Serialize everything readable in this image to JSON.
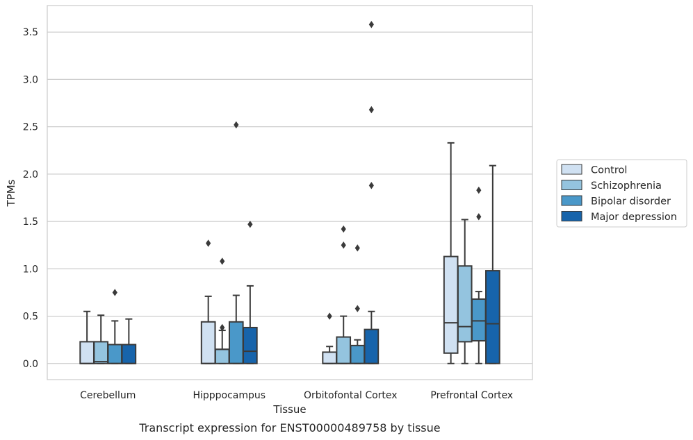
{
  "caption": "Transcript expression for ENST00000489758 by tissue",
  "chart_data": {
    "type": "box",
    "xlabel": "Tissue",
    "ylabel": "TPMs",
    "ylim": [
      -0.17,
      3.78
    ],
    "yticks": [
      "0.0",
      "0.5",
      "1.0",
      "1.5",
      "2.0",
      "2.5",
      "3.0",
      "3.5"
    ],
    "grid": "horizontal",
    "legend_position": "right",
    "categories": [
      "Cerebellum",
      "Hipppocampus",
      "Orbitofontal Cortex",
      "Prefrontal Cortex"
    ],
    "series": [
      {
        "name": "Control",
        "color": "#d0e1f2",
        "boxes": [
          {
            "whislo": 0.0,
            "q1": 0.0,
            "med": 0.0,
            "q3": 0.23,
            "whishi": 0.55,
            "fliers": []
          },
          {
            "whislo": 0.0,
            "q1": 0.0,
            "med": 0.0,
            "q3": 0.44,
            "whishi": 0.71,
            "fliers": [
              1.27
            ]
          },
          {
            "whislo": 0.0,
            "q1": 0.0,
            "med": 0.0,
            "q3": 0.12,
            "whishi": 0.18,
            "fliers": [
              0.5
            ]
          },
          {
            "whislo": 0.0,
            "q1": 0.11,
            "med": 0.43,
            "q3": 1.13,
            "whishi": 2.33,
            "fliers": []
          }
        ]
      },
      {
        "name": "Schizophrenia",
        "color": "#94c4df",
        "boxes": [
          {
            "whislo": 0.0,
            "q1": 0.0,
            "med": 0.02,
            "q3": 0.23,
            "whishi": 0.51,
            "fliers": []
          },
          {
            "whislo": 0.0,
            "q1": 0.0,
            "med": 0.15,
            "q3": 0.15,
            "whishi": 0.35,
            "fliers": [
              0.38,
              1.08
            ]
          },
          {
            "whislo": 0.0,
            "q1": 0.0,
            "med": 0.0,
            "q3": 0.28,
            "whishi": 0.5,
            "fliers": [
              1.25,
              1.42
            ]
          },
          {
            "whislo": 0.0,
            "q1": 0.23,
            "med": 0.39,
            "q3": 1.03,
            "whishi": 1.52,
            "fliers": []
          }
        ]
      },
      {
        "name": "Bipolar disorder",
        "color": "#4a98c9",
        "boxes": [
          {
            "whislo": 0.0,
            "q1": 0.0,
            "med": 0.0,
            "q3": 0.2,
            "whishi": 0.45,
            "fliers": [
              0.75
            ]
          },
          {
            "whislo": 0.0,
            "q1": 0.0,
            "med": 0.0,
            "q3": 0.44,
            "whishi": 0.72,
            "fliers": [
              2.52
            ]
          },
          {
            "whislo": 0.0,
            "q1": 0.0,
            "med": 0.0,
            "q3": 0.19,
            "whishi": 0.25,
            "fliers": [
              0.58,
              1.22
            ]
          },
          {
            "whislo": 0.0,
            "q1": 0.24,
            "med": 0.45,
            "q3": 0.68,
            "whishi": 0.76,
            "fliers": [
              1.55,
              1.83
            ]
          }
        ]
      },
      {
        "name": "Major depression",
        "color": "#1764ab",
        "boxes": [
          {
            "whislo": 0.0,
            "q1": 0.0,
            "med": 0.0,
            "q3": 0.2,
            "whishi": 0.47,
            "fliers": []
          },
          {
            "whislo": 0.0,
            "q1": 0.0,
            "med": 0.13,
            "q3": 0.38,
            "whishi": 0.82,
            "fliers": [
              1.47
            ]
          },
          {
            "whislo": 0.0,
            "q1": 0.0,
            "med": 0.0,
            "q3": 0.36,
            "whishi": 0.55,
            "fliers": [
              1.88,
              2.68,
              3.58
            ]
          },
          {
            "whislo": 0.0,
            "q1": 0.0,
            "med": 0.42,
            "q3": 0.98,
            "whishi": 2.09,
            "fliers": []
          }
        ]
      }
    ]
  }
}
